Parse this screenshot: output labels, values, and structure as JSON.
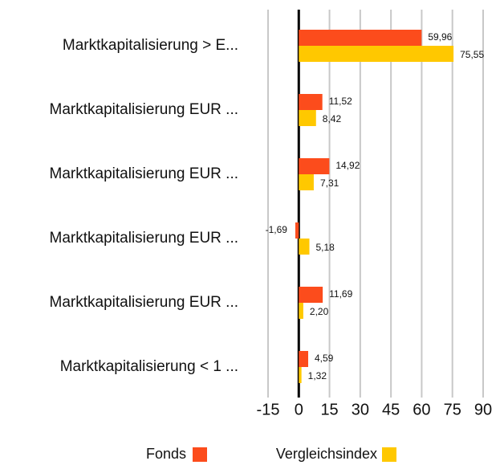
{
  "chart_data": {
    "type": "bar",
    "orientation": "horizontal",
    "categories": [
      "Marktkapitalisierung > E...",
      "Marktkapitalisierung EUR ...",
      "Marktkapitalisierung EUR ...",
      "Marktkapitalisierung EUR ...",
      "Marktkapitalisierung EUR ...",
      "Marktkapitalisierung < 1 ..."
    ],
    "series": [
      {
        "name": "Fonds",
        "color": "#fc4c1c",
        "values": [
          59.96,
          11.52,
          14.92,
          -1.69,
          11.69,
          4.59
        ],
        "value_labels": [
          "59,96",
          "11,52",
          "14,92",
          "-1,69",
          "11,69",
          "4,59"
        ]
      },
      {
        "name": "Vergleichsindex",
        "color": "#ffc800",
        "values": [
          75.55,
          8.42,
          7.31,
          5.18,
          2.2,
          1.32
        ],
        "value_labels": [
          "75,55",
          "8,42",
          "7,31",
          "5,18",
          "2,20",
          "1,32"
        ]
      }
    ],
    "xlim": [
      -15,
      90
    ],
    "xticks": [
      -15,
      0,
      15,
      30,
      45,
      60,
      75,
      90
    ],
    "grid": true,
    "legend": "bottom"
  }
}
